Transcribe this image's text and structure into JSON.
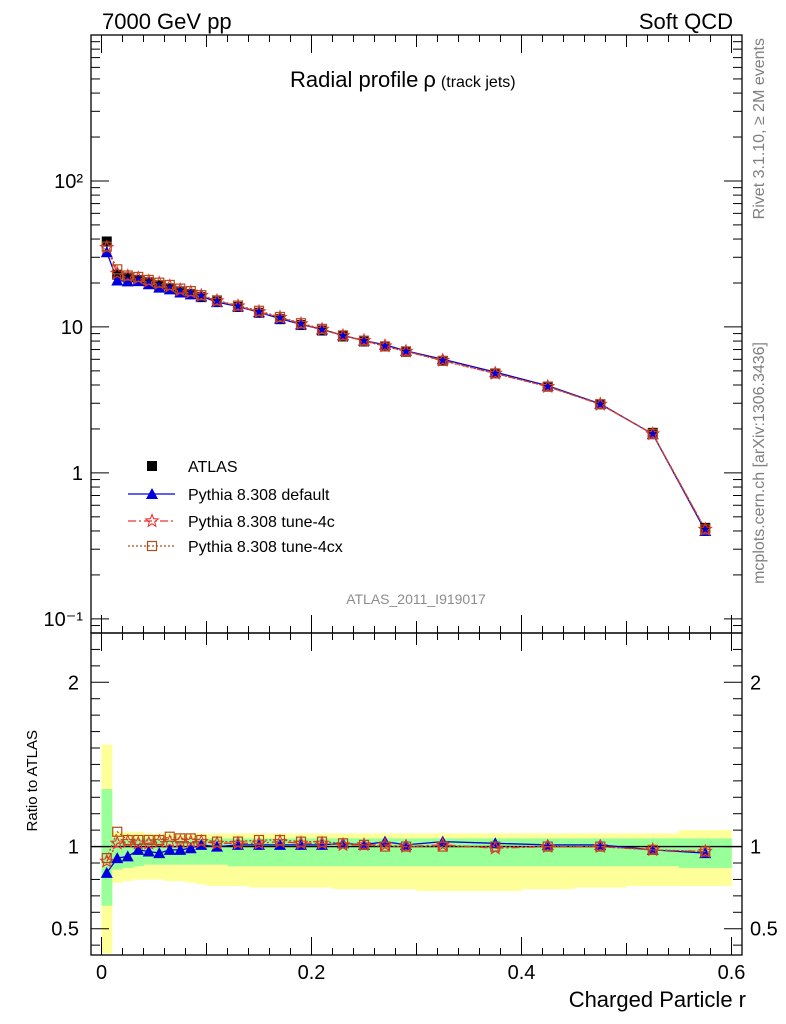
{
  "header": {
    "left": "7000 GeV pp",
    "right": "Soft QCD"
  },
  "title": {
    "main": "Radial profile",
    "symbol": "ρ",
    "sub": "(track jets)"
  },
  "side_labels": {
    "top": "Rivet 3.1.10, ≥ 2M events",
    "bottom": "mcplots.cern.ch [arXiv:1306.3436]"
  },
  "analysis_id": "ATLAS_2011_I919017",
  "colors": {
    "data": "#000000",
    "default": "#0000dd",
    "tune4c": "#ee3333",
    "tune4cx": "#b24c1a",
    "band_stat": "#99ff99",
    "band_total": "#ffff99"
  },
  "chart_data": [
    {
      "type": "line",
      "ylog": true,
      "xlim": [
        -0.01,
        0.61
      ],
      "ylim": [
        0.08,
        1000
      ],
      "y_ticks": [
        {
          "value": 0.1,
          "label": "10⁻¹"
        },
        {
          "value": 1,
          "label": "1"
        },
        {
          "value": 10,
          "label": "10"
        },
        {
          "value": 100,
          "label": "10²"
        }
      ],
      "x": [
        0.005,
        0.015,
        0.025,
        0.035,
        0.045,
        0.055,
        0.065,
        0.075,
        0.085,
        0.095,
        0.11,
        0.13,
        0.15,
        0.17,
        0.19,
        0.21,
        0.23,
        0.25,
        0.27,
        0.29,
        0.325,
        0.375,
        0.425,
        0.475,
        0.525,
        0.575
      ],
      "series": [
        {
          "name": "ATLAS",
          "marker": "square",
          "values": [
            38.5,
            22.8,
            21.8,
            21.0,
            20.2,
            19.3,
            18.4,
            17.5,
            16.8,
            16.0,
            14.9,
            13.7,
            12.5,
            11.3,
            10.3,
            9.45,
            8.6,
            7.95,
            7.35,
            6.75,
            5.85,
            4.8,
            3.9,
            2.95,
            1.88,
            0.42
          ]
        },
        {
          "name": "Pythia 8.308 default",
          "marker": "triangle",
          "line": "solid",
          "values": [
            32.5,
            20.8,
            20.5,
            20.6,
            19.6,
            18.6,
            18.1,
            17.2,
            16.7,
            16.2,
            14.8,
            13.8,
            12.6,
            11.4,
            10.4,
            9.6,
            8.75,
            8.05,
            7.55,
            6.85,
            6.0,
            4.9,
            3.95,
            2.97,
            1.84,
            0.4
          ]
        },
        {
          "name": "Pythia 8.308 tune-4c",
          "marker": "star",
          "line": "dashdot",
          "values": [
            35.0,
            23.3,
            22.3,
            21.6,
            20.6,
            19.9,
            19.0,
            17.9,
            17.3,
            16.4,
            15.1,
            13.9,
            12.7,
            11.6,
            10.5,
            9.6,
            8.7,
            8.05,
            7.4,
            6.8,
            5.9,
            4.8,
            3.9,
            2.95,
            1.85,
            0.41
          ]
        },
        {
          "name": "Pythia 8.308 tune-4cx",
          "marker": "opensquare",
          "line": "dotted",
          "values": [
            35.5,
            24.8,
            22.5,
            22.0,
            21.0,
            20.1,
            19.4,
            18.3,
            17.6,
            16.5,
            15.2,
            14.0,
            12.9,
            11.7,
            10.6,
            9.7,
            8.75,
            8.05,
            7.35,
            6.8,
            5.85,
            4.8,
            3.9,
            2.95,
            1.85,
            0.41
          ]
        }
      ]
    },
    {
      "type": "line",
      "xlabel": "Charged Particle r",
      "ylabel": "Ratio to ATLAS",
      "xlim": [
        -0.01,
        0.61
      ],
      "ylim": [
        0.34,
        2.3
      ],
      "x_ticks": [
        0,
        0.2,
        0.4,
        0.6
      ],
      "y_ticks": [
        0.5,
        1,
        2
      ],
      "bins": [
        [
          0.0,
          0.01
        ],
        [
          0.01,
          0.02
        ],
        [
          0.02,
          0.03
        ],
        [
          0.03,
          0.04
        ],
        [
          0.04,
          0.05
        ],
        [
          0.05,
          0.06
        ],
        [
          0.06,
          0.07
        ],
        [
          0.07,
          0.08
        ],
        [
          0.08,
          0.09
        ],
        [
          0.09,
          0.1
        ],
        [
          0.1,
          0.12
        ],
        [
          0.12,
          0.14
        ],
        [
          0.14,
          0.16
        ],
        [
          0.16,
          0.18
        ],
        [
          0.18,
          0.2
        ],
        [
          0.2,
          0.22
        ],
        [
          0.22,
          0.24
        ],
        [
          0.24,
          0.26
        ],
        [
          0.26,
          0.28
        ],
        [
          0.28,
          0.3
        ],
        [
          0.3,
          0.35
        ],
        [
          0.35,
          0.4
        ],
        [
          0.4,
          0.45
        ],
        [
          0.45,
          0.5
        ],
        [
          0.5,
          0.55
        ],
        [
          0.55,
          0.6
        ]
      ],
      "band_total": [
        [
          0.35,
          1.62
        ],
        [
          0.78,
          1.09
        ],
        [
          0.79,
          1.09
        ],
        [
          0.8,
          1.09
        ],
        [
          0.8,
          1.08
        ],
        [
          0.8,
          1.08
        ],
        [
          0.79,
          1.08
        ],
        [
          0.79,
          1.08
        ],
        [
          0.78,
          1.08
        ],
        [
          0.77,
          1.08
        ],
        [
          0.76,
          1.08
        ],
        [
          0.76,
          1.08
        ],
        [
          0.75,
          1.08
        ],
        [
          0.75,
          1.08
        ],
        [
          0.75,
          1.08
        ],
        [
          0.75,
          1.08
        ],
        [
          0.74,
          1.08
        ],
        [
          0.74,
          1.08
        ],
        [
          0.74,
          1.08
        ],
        [
          0.74,
          1.08
        ],
        [
          0.73,
          1.08
        ],
        [
          0.73,
          1.08
        ],
        [
          0.74,
          1.08
        ],
        [
          0.75,
          1.08
        ],
        [
          0.76,
          1.08
        ],
        [
          0.76,
          1.1
        ]
      ],
      "band_stat": [
        [
          0.64,
          1.35
        ],
        [
          0.86,
          1.05
        ],
        [
          0.87,
          1.05
        ],
        [
          0.88,
          1.05
        ],
        [
          0.89,
          1.05
        ],
        [
          0.89,
          1.05
        ],
        [
          0.89,
          1.05
        ],
        [
          0.89,
          1.05
        ],
        [
          0.89,
          1.05
        ],
        [
          0.89,
          1.05
        ],
        [
          0.89,
          1.05
        ],
        [
          0.88,
          1.05
        ],
        [
          0.88,
          1.05
        ],
        [
          0.88,
          1.05
        ],
        [
          0.88,
          1.05
        ],
        [
          0.88,
          1.05
        ],
        [
          0.88,
          1.05
        ],
        [
          0.88,
          1.05
        ],
        [
          0.88,
          1.05
        ],
        [
          0.88,
          1.05
        ],
        [
          0.88,
          1.05
        ],
        [
          0.88,
          1.05
        ],
        [
          0.88,
          1.05
        ],
        [
          0.88,
          1.05
        ],
        [
          0.88,
          1.05
        ],
        [
          0.87,
          1.05
        ]
      ],
      "x": [
        0.005,
        0.015,
        0.025,
        0.035,
        0.045,
        0.055,
        0.065,
        0.075,
        0.085,
        0.095,
        0.11,
        0.13,
        0.15,
        0.17,
        0.19,
        0.21,
        0.23,
        0.25,
        0.27,
        0.29,
        0.325,
        0.375,
        0.425,
        0.475,
        0.525,
        0.575
      ],
      "series": [
        {
          "name": "Pythia 8.308 default",
          "values": [
            0.84,
            0.93,
            0.94,
            0.98,
            0.97,
            0.96,
            0.98,
            0.98,
            0.99,
            1.01,
            1.0,
            1.01,
            1.01,
            1.01,
            1.01,
            1.01,
            1.02,
            1.01,
            1.03,
            1.01,
            1.03,
            1.02,
            1.01,
            1.01,
            0.98,
            0.96
          ]
        },
        {
          "name": "Pythia 8.308 tune-4c",
          "values": [
            0.91,
            1.02,
            1.03,
            1.02,
            1.02,
            1.03,
            1.03,
            1.03,
            1.03,
            1.03,
            1.02,
            1.02,
            1.02,
            1.03,
            1.02,
            1.02,
            1.01,
            1.01,
            1.01,
            1.0,
            1.01,
            0.99,
            1.0,
            1.0,
            0.98,
            0.97
          ]
        },
        {
          "name": "Pythia 8.308 tune-4cx",
          "values": [
            0.93,
            1.09,
            1.04,
            1.04,
            1.04,
            1.04,
            1.06,
            1.05,
            1.05,
            1.04,
            1.03,
            1.03,
            1.04,
            1.04,
            1.03,
            1.03,
            1.02,
            1.01,
            1.0,
            1.0,
            1.0,
            1.0,
            1.0,
            1.0,
            0.98,
            0.97
          ]
        }
      ]
    }
  ]
}
